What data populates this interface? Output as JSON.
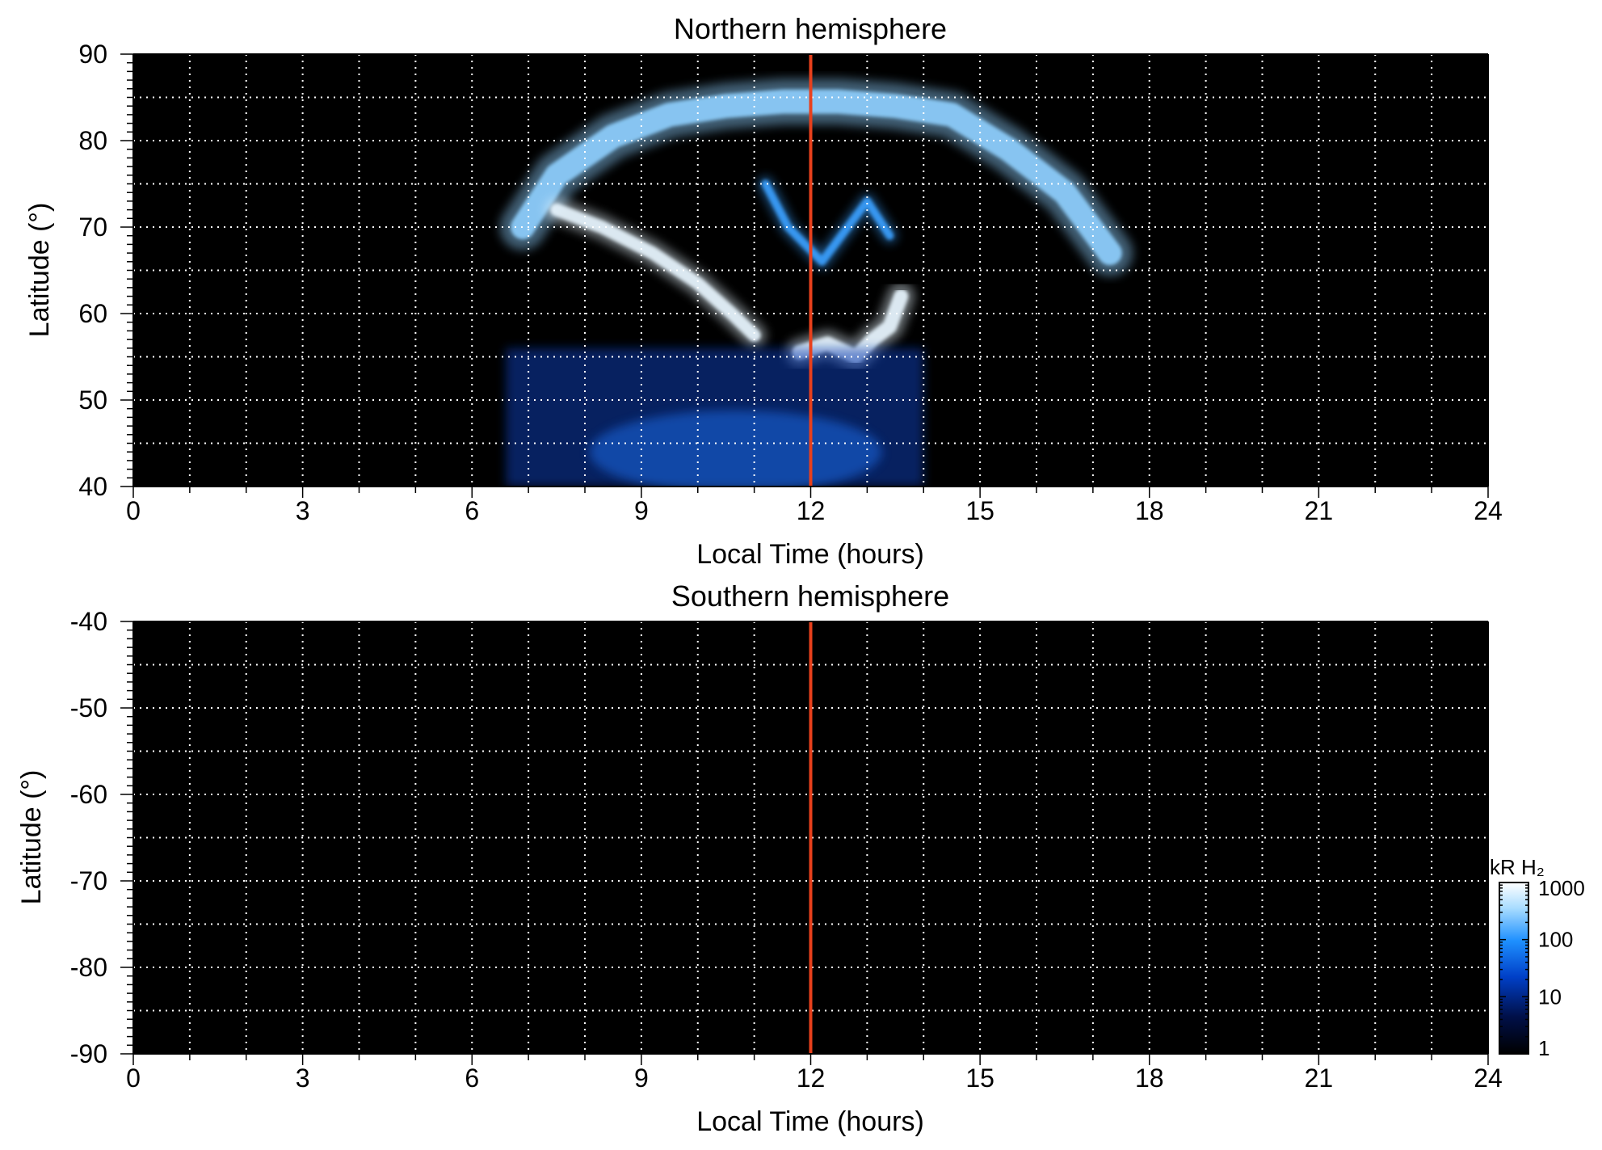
{
  "chart_data": [
    {
      "type": "heatmap",
      "title": "Northern hemisphere",
      "xlabel": "Local Time (hours)",
      "ylabel": "Latitude (°)",
      "xlim": [
        0,
        24
      ],
      "ylim": [
        40,
        90
      ],
      "xticks": [
        "0",
        "3",
        "6",
        "9",
        "12",
        "15",
        "18",
        "21",
        "24"
      ],
      "yticks": [
        "40",
        "50",
        "60",
        "70",
        "80",
        "90"
      ],
      "grid": true,
      "marker_line": {
        "x": 12,
        "color": "#e8401c"
      },
      "emission_features": [
        {
          "name": "main oval",
          "x": [
            6.9,
            7.5,
            8.5,
            9.5,
            10.5,
            11.5,
            12,
            12.5,
            13.5,
            14.5,
            15.5,
            16.5,
            17.3
          ],
          "y": [
            70,
            76,
            80.5,
            83,
            84,
            84.5,
            84.5,
            84.5,
            84,
            83,
            79,
            74,
            67
          ],
          "intensity": 600
        },
        {
          "name": "dawn arc",
          "x": [
            7.5,
            8.3,
            9.2,
            10.0,
            10.6,
            11.0
          ],
          "y": [
            72,
            70,
            67,
            63.5,
            60,
            57.5
          ],
          "intensity": 1000
        },
        {
          "name": "noon spot",
          "x": [
            11.8,
            12.3,
            12.8,
            13.1,
            13.4,
            13.6
          ],
          "y": [
            55.5,
            56.5,
            55,
            57,
            58.5,
            62
          ],
          "intensity": 800
        },
        {
          "name": "dayside filaments",
          "x": [
            11.2,
            11.6,
            12.2,
            13.0,
            13.4
          ],
          "y": [
            75,
            70,
            66,
            73,
            69
          ],
          "intensity": 200
        },
        {
          "name": "low-latitude emission",
          "x_range": [
            6.6,
            14
          ],
          "y_range": [
            40,
            56
          ],
          "intensity": 20
        }
      ]
    },
    {
      "type": "heatmap",
      "title": "Southern hemisphere",
      "xlabel": "Local Time (hours)",
      "ylabel": "Latitude (°)",
      "xlim": [
        0,
        24
      ],
      "ylim": [
        -90,
        -40
      ],
      "xticks": [
        "0",
        "3",
        "6",
        "9",
        "12",
        "15",
        "18",
        "21",
        "24"
      ],
      "yticks": [
        "-40",
        "-50",
        "-60",
        "-70",
        "-80",
        "-90"
      ],
      "grid": true,
      "marker_line": {
        "x": 12,
        "color": "#e8401c"
      },
      "emission_features": []
    }
  ],
  "colorbar": {
    "label": "kR H₂",
    "scale": "log",
    "range": [
      1,
      1000
    ],
    "ticks": [
      "1",
      "10",
      "100",
      "1000"
    ],
    "colors": [
      "#000000",
      "#00104a",
      "#0040c8",
      "#1e90ff",
      "#a8dcff",
      "#ffffff"
    ]
  },
  "colors": {
    "background": "#000000",
    "grid": "#ffffff",
    "marker_line": "#e8401c"
  }
}
